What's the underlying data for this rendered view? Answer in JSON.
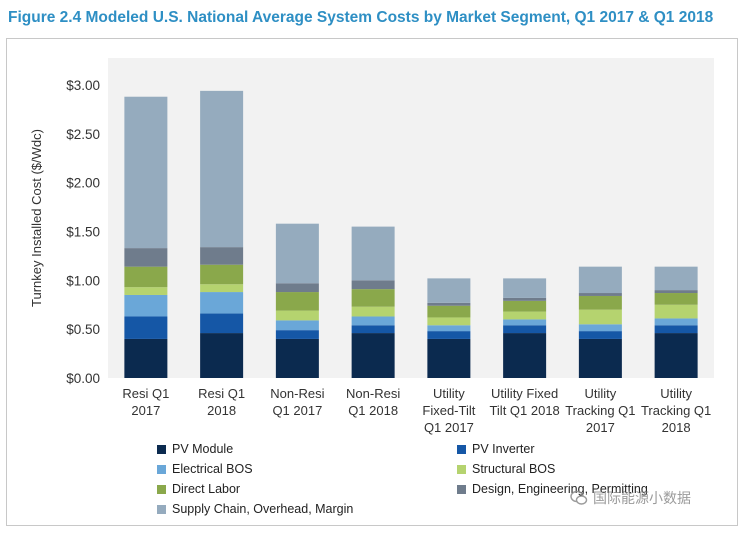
{
  "title": "Figure 2.4 Modeled U.S. National Average System Costs by Market Segment, Q1 2017 & Q1 2018",
  "watermark": "国际能源小数据",
  "chart_data": {
    "type": "bar",
    "stacked": true,
    "title": "Figure 2.4 Modeled U.S. National Average System Costs by Market Segment, Q1 2017 & Q1 2018",
    "ylabel": "Turnkey Installed Cost ($/Wdc)",
    "xlabel": "",
    "ylim": [
      0,
      3.0
    ],
    "yticks": [
      "$0.00",
      "$0.50",
      "$1.00",
      "$1.50",
      "$2.00",
      "$2.50",
      "$3.00"
    ],
    "ytick_values": [
      0,
      0.5,
      1.0,
      1.5,
      2.0,
      2.5,
      3.0
    ],
    "grid": false,
    "legend_position": "bottom",
    "categories": [
      [
        "Resi Q1",
        "2017"
      ],
      [
        "Resi Q1",
        "2018"
      ],
      [
        "Non-Resi",
        "Q1 2017"
      ],
      [
        "Non-Resi",
        "Q1 2018"
      ],
      [
        "Utility",
        "Fixed-Tilt",
        "Q1 2017"
      ],
      [
        "Utility Fixed",
        "Tilt Q1 2018"
      ],
      [
        "Utility",
        "Tracking Q1",
        "2017"
      ],
      [
        "Utility",
        "Tracking Q1",
        "2018"
      ]
    ],
    "series": [
      {
        "name": "PV Module",
        "color": "#0b2a4f",
        "values": [
          0.4,
          0.46,
          0.4,
          0.46,
          0.4,
          0.46,
          0.4,
          0.46
        ]
      },
      {
        "name": "PV Inverter",
        "color": "#1557a6",
        "values": [
          0.23,
          0.2,
          0.09,
          0.08,
          0.08,
          0.08,
          0.08,
          0.08
        ]
      },
      {
        "name": "Electrical BOS",
        "color": "#6aa7d8",
        "values": [
          0.22,
          0.22,
          0.1,
          0.09,
          0.06,
          0.06,
          0.07,
          0.07
        ]
      },
      {
        "name": "Structural BOS",
        "color": "#b5d36f",
        "values": [
          0.08,
          0.08,
          0.1,
          0.1,
          0.08,
          0.08,
          0.15,
          0.14
        ]
      },
      {
        "name": "Direct Labor",
        "color": "#8aa84b",
        "values": [
          0.21,
          0.2,
          0.19,
          0.18,
          0.12,
          0.11,
          0.14,
          0.12
        ]
      },
      {
        "name": "Design, Engineering, Permitting",
        "color": "#6f7c8c",
        "values": [
          0.19,
          0.18,
          0.09,
          0.09,
          0.03,
          0.03,
          0.03,
          0.03
        ]
      },
      {
        "name": "Supply Chain, Overhead, Margin",
        "color": "#95abbe",
        "values": [
          1.55,
          1.6,
          0.61,
          0.55,
          0.25,
          0.2,
          0.27,
          0.24
        ]
      }
    ]
  }
}
